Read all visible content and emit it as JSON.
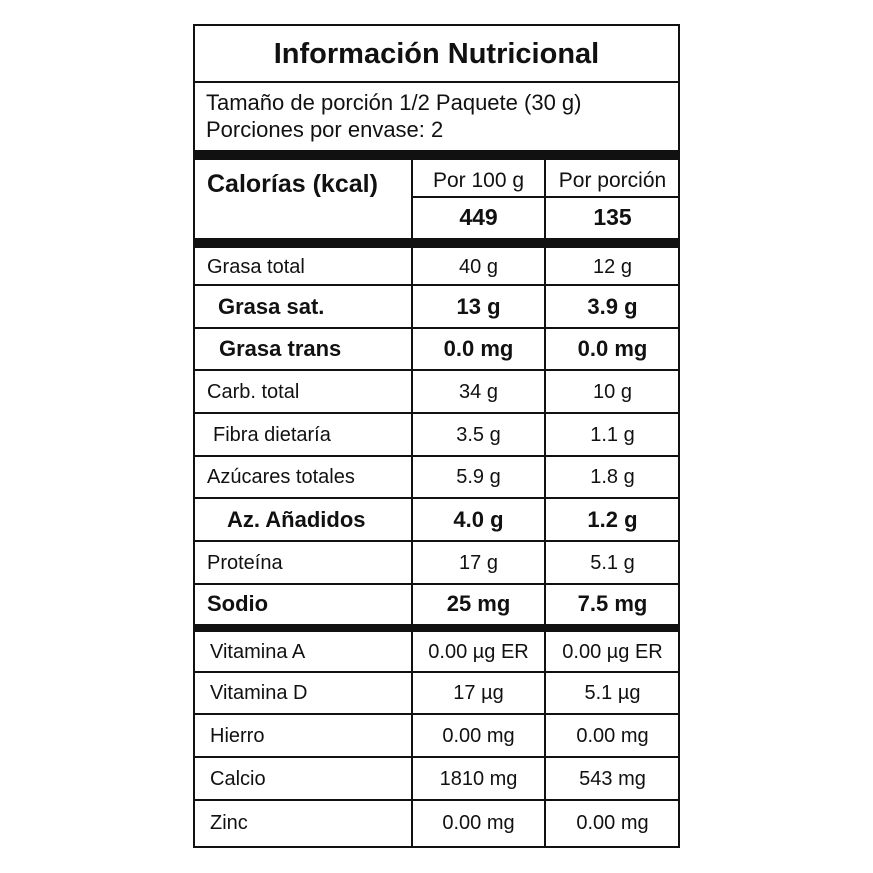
{
  "title": "Información Nutricional",
  "serving": [
    "Tamaño de porción 1/2 Paquete  (30 g)",
    "Porciones por envase: 2"
  ],
  "calories": {
    "label": "Calorías (kcal)",
    "col1": "Por 100 g",
    "col2": "Por porción",
    "per100": "449",
    "perServing": "135"
  },
  "nutrients": [
    [
      "Grasa total",
      "40 g",
      "12 g"
    ],
    [
      "Grasa sat.",
      "13 g",
      "3.9 g"
    ],
    [
      "Grasa trans",
      "0.0 mg",
      "0.0 mg"
    ],
    [
      "Carb. total",
      "34 g",
      "10 g"
    ],
    [
      "Fibra dietaría",
      "3.5 g",
      "1.1 g"
    ],
    [
      "Azúcares totales",
      "5.9 g",
      "1.8 g"
    ],
    [
      "Az. Añadidos",
      "4.0 g",
      "1.2 g"
    ],
    [
      "Proteína",
      "17 g",
      "5.1 g"
    ],
    [
      "Sodio",
      "25 mg",
      "7.5 mg"
    ]
  ],
  "micronutrients": [
    [
      "Vitamina A",
      "0.00 µg ER",
      "0.00 µg ER"
    ],
    [
      "Vitamina D",
      "17 µg",
      "5.1 µg"
    ],
    [
      "Hierro",
      "0.00 mg",
      "0.00 mg"
    ],
    [
      "Calcio",
      "1810 mg",
      "543 mg"
    ],
    [
      "Zinc",
      "0.00 mg",
      "0.00 mg"
    ]
  ]
}
